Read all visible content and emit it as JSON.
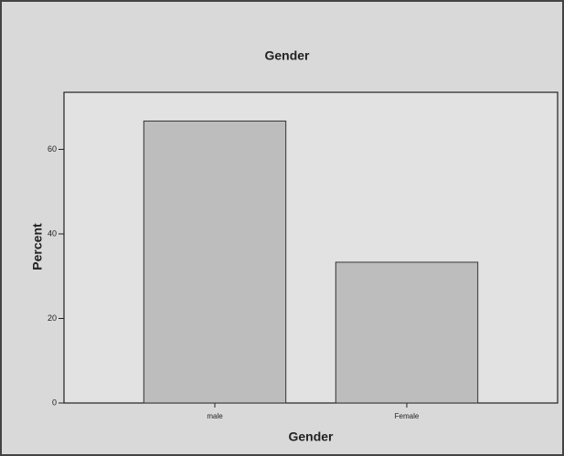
{
  "chart_data": {
    "type": "bar",
    "title": "Gender",
    "x_label": "Gender",
    "y_label": "Percent",
    "categories": [
      "male",
      "Female"
    ],
    "values": [
      66.7,
      33.3
    ],
    "color": "#bdbdbd",
    "ylim": [
      0,
      73.5
    ],
    "yticks": [
      0,
      20,
      40,
      60
    ],
    "grid": false
  }
}
